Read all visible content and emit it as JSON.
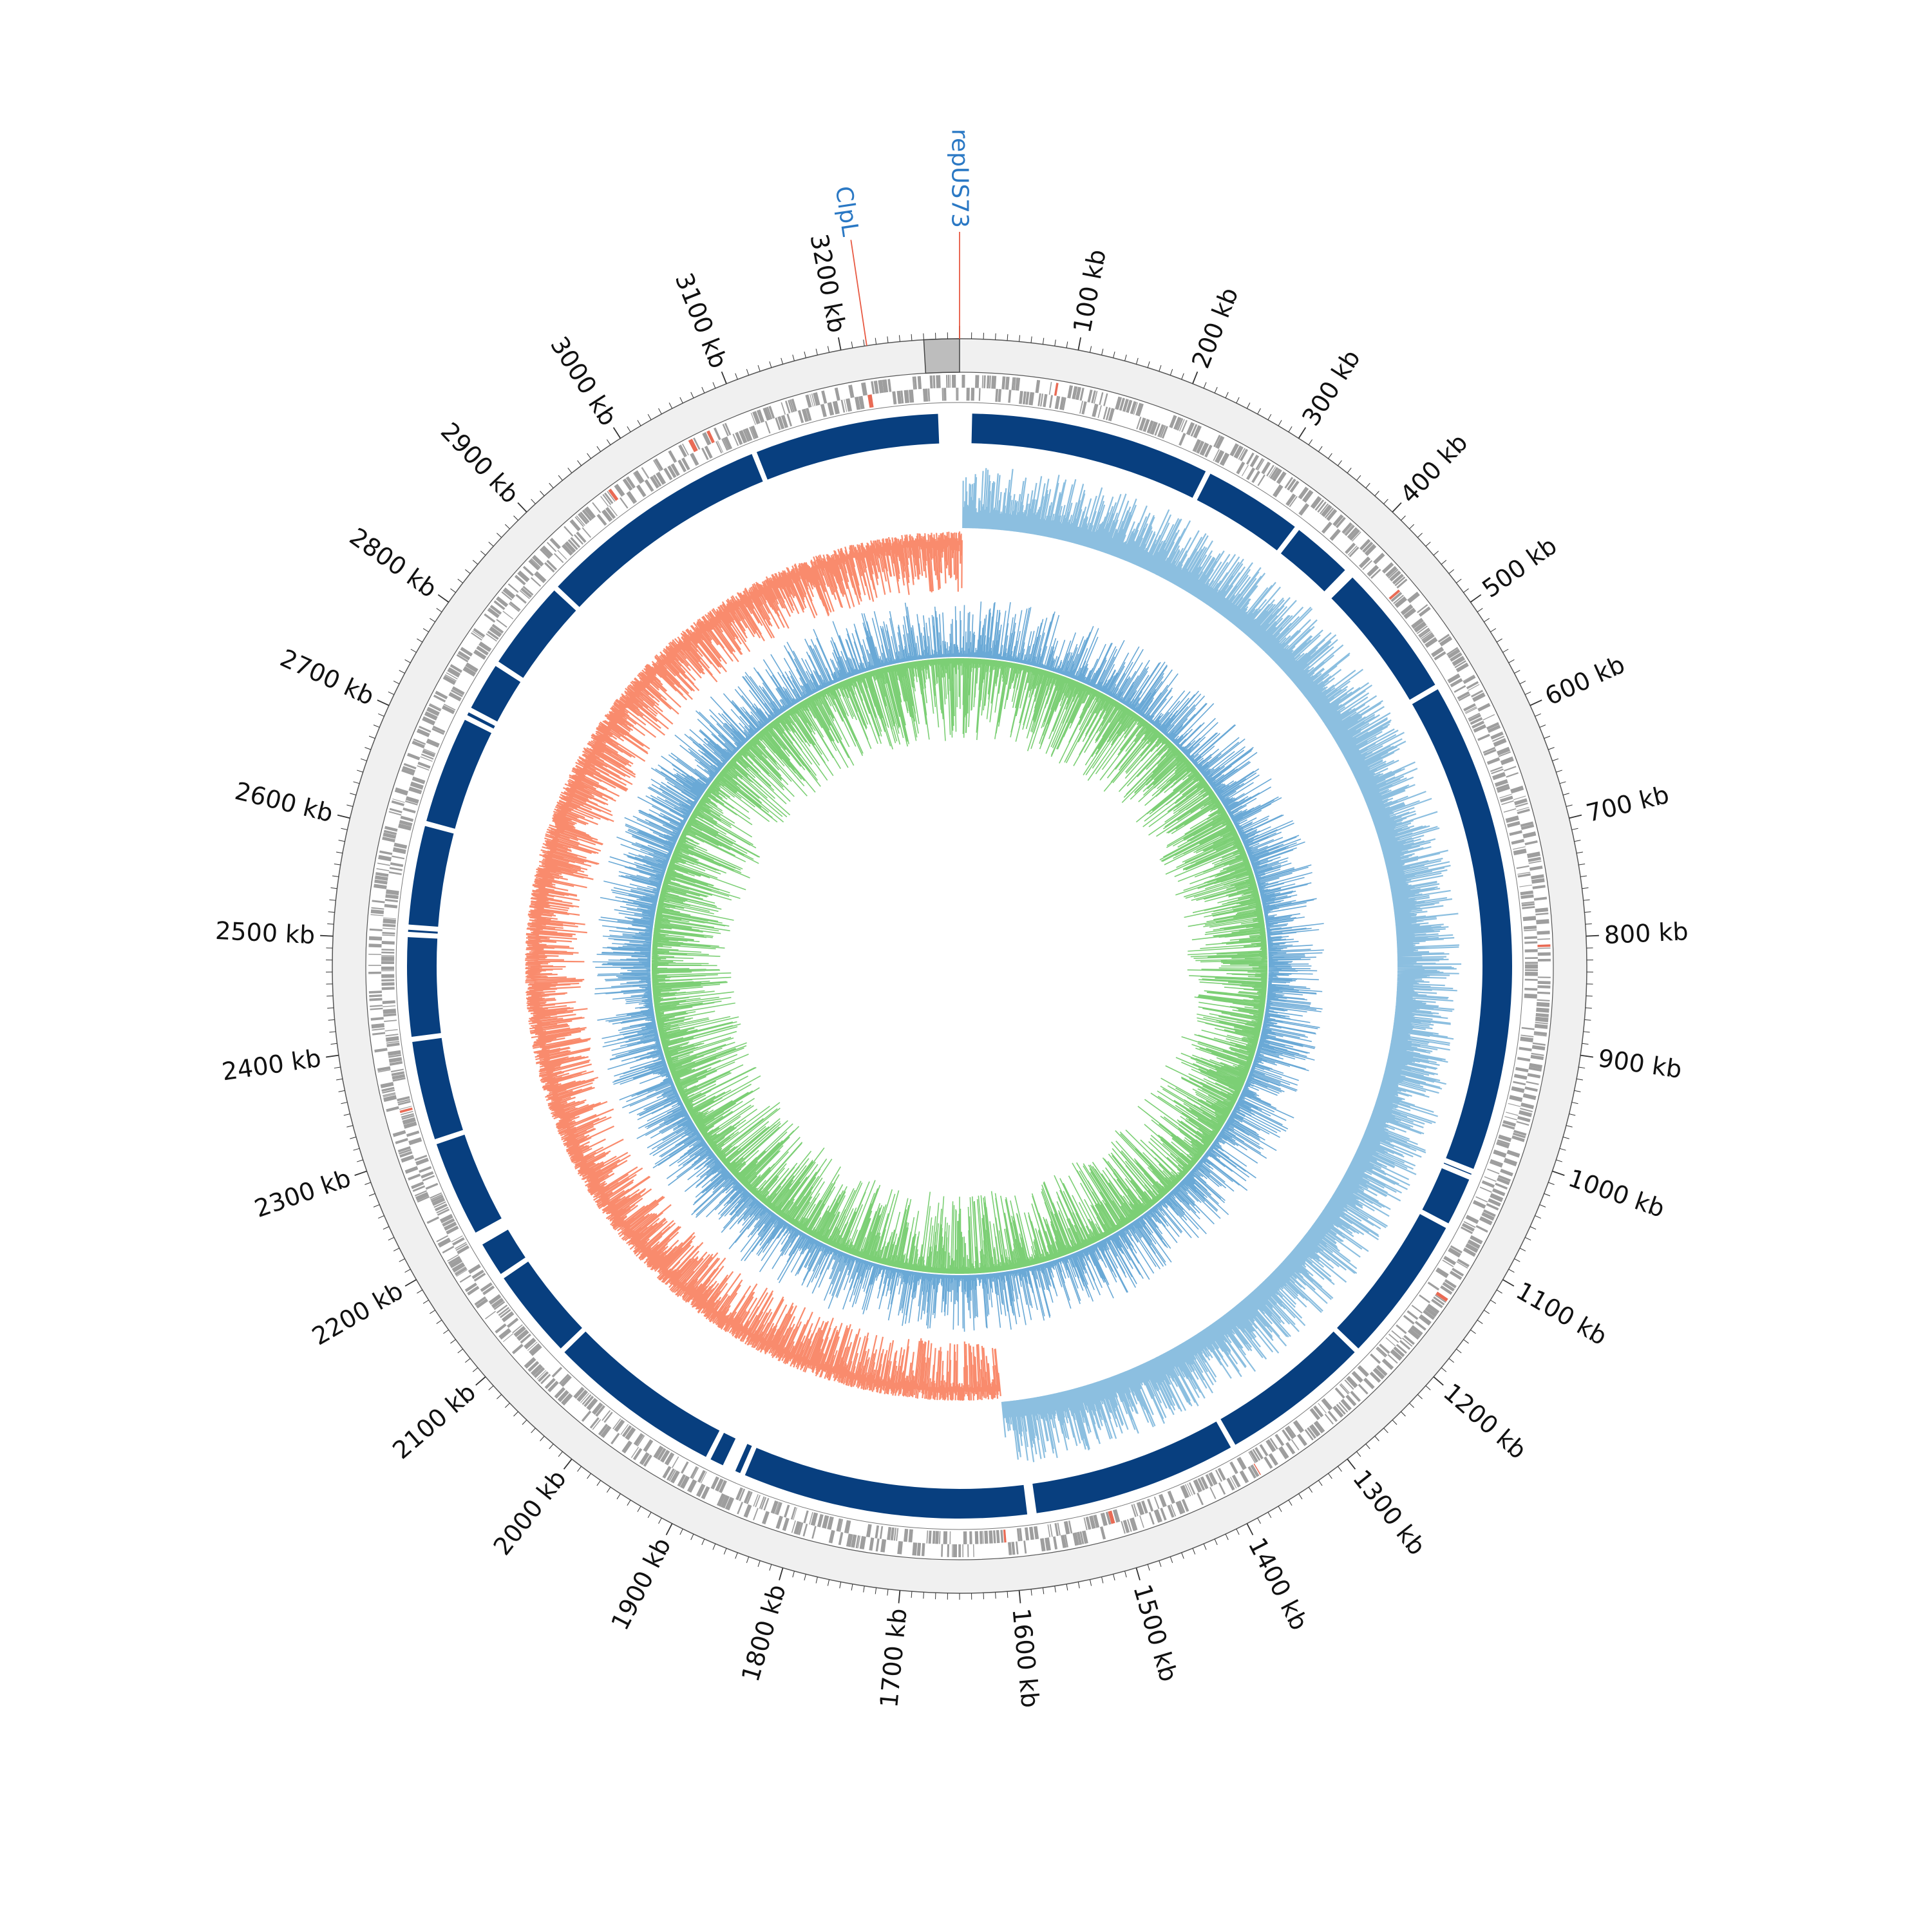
{
  "genome": {
    "length_kb": 3300,
    "tick_unit": "kb",
    "major_tick_step_kb": 100,
    "minor_tick_step_kb": 10,
    "major_tick_labels": [
      "100 kb",
      "200 kb",
      "300 kb",
      "400 kb",
      "500 kb",
      "600 kb",
      "700 kb",
      "800 kb",
      "900 kb",
      "1000 kb",
      "1100 kb",
      "1200 kb",
      "1300 kb",
      "1400 kb",
      "1500 kb",
      "1600 kb",
      "1700 kb",
      "1800 kb",
      "1900 kb",
      "2000 kb",
      "2100 kb",
      "2200 kb",
      "2300 kb",
      "2400 kb",
      "2500 kb",
      "2600 kb",
      "2700 kb",
      "2800 kb",
      "2900 kb",
      "3000 kb",
      "3100 kb",
      "3200 kb"
    ]
  },
  "highlight_region_kb": [
    3270,
    3300
  ],
  "features": [
    {
      "label": "repUS73",
      "position_kb": 3300
    },
    {
      "label": "ClpL",
      "position_kb": 3222
    }
  ],
  "contig_gaps_kb": [
    245,
    345,
    408,
    413,
    547,
    1025,
    1031,
    1082,
    1229,
    1378,
    1579,
    1583,
    1862,
    1872,
    1876,
    1880,
    1898,
    2071,
    2162,
    2200,
    2204,
    2208,
    2305,
    2405,
    2505,
    2512,
    2612,
    2720,
    2728,
    2779,
    2870,
    3100
  ],
  "gc_skew": {
    "positive_end_kb": 1600,
    "positive_color": "#8cbfe0",
    "negative_color": "#f98b6d"
  },
  "colors": {
    "outer_ring": "#f0f0f0",
    "highlight": "#bdbdbd",
    "genes": "#9e9e9e",
    "rrna": "#e96b55",
    "contigs": "#083f7f",
    "gc_content": "#6aa9d6",
    "gc_content_inner": "#7ccf75",
    "feature_label": "#2a78c4",
    "feature_line": "#e85a43"
  }
}
